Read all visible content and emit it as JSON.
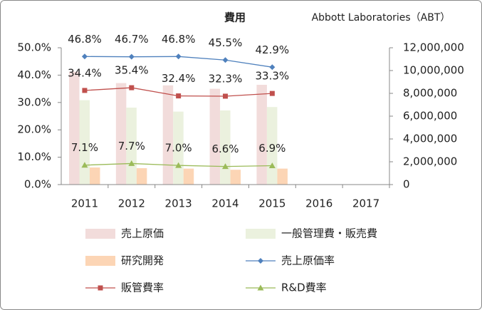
{
  "chart_data": {
    "type": "bar",
    "title": "費用",
    "subtitle": "Abbott Laboratories（ABT）",
    "categories": [
      "2011",
      "2012",
      "2013",
      "2014",
      "2015",
      "2016",
      "2017"
    ],
    "ylim": [
      0,
      50
    ],
    "yticks": [
      {
        "value": 0,
        "label": "0.0%"
      },
      {
        "value": 10,
        "label": "10.0%"
      },
      {
        "value": 20,
        "label": "20.0%"
      },
      {
        "value": 30,
        "label": "30.0%"
      },
      {
        "value": 40,
        "label": "40.0%"
      },
      {
        "value": 50,
        "label": "50.0%"
      }
    ],
    "y2lim": [
      0,
      12000000
    ],
    "y2ticks": [
      0,
      {
        "value": 2000000,
        "label": "2,000,000"
      },
      {
        "value": 4000000,
        "label": "4,000,000"
      },
      {
        "value": 6000000,
        "label": "6,000,000"
      },
      {
        "value": 8000000,
        "label": "8,000,000"
      },
      {
        "value": 10000000,
        "label": "10,000,000"
      },
      {
        "value": 12000000,
        "label": "12,000,000"
      }
    ],
    "grid": false,
    "legend": "bottom",
    "series": [
      {
        "name": "売上原価",
        "type": "bar",
        "axis": "y2",
        "color": "#f2dcdb",
        "values": [
          9900000,
          8900000,
          8700000,
          8400000,
          8750000,
          null,
          null
        ]
      },
      {
        "name": "一般管理費・販売費",
        "type": "bar",
        "axis": "y2",
        "color": "#ebf1de",
        "values": [
          7400000,
          6750000,
          6400000,
          6500000,
          6800000,
          null,
          null
        ]
      },
      {
        "name": "研究開発",
        "type": "bar",
        "axis": "y2",
        "color": "#fcd5b5",
        "values": [
          1500000,
          1440000,
          1400000,
          1300000,
          1400000,
          null,
          null
        ]
      },
      {
        "name": "売上原価率",
        "type": "line",
        "marker": "diamond",
        "color": "#4f81bd",
        "values": [
          46.8,
          46.7,
          46.8,
          45.5,
          42.9,
          null,
          null
        ],
        "value_labels": [
          "46.8%",
          "46.7%",
          "46.8%",
          "45.5%",
          "42.9%",
          null,
          null
        ]
      },
      {
        "name": "販管費率",
        "type": "line",
        "marker": "square",
        "color": "#c0504d",
        "values": [
          34.4,
          35.4,
          32.4,
          32.3,
          33.3,
          null,
          null
        ],
        "value_labels": [
          "34.4%",
          "35.4%",
          "32.4%",
          "32.3%",
          "33.3%",
          null,
          null
        ]
      },
      {
        "name": "R&D費率",
        "type": "line",
        "marker": "triangle",
        "color": "#9bbb59",
        "values": [
          7.1,
          7.7,
          7.0,
          6.6,
          6.9,
          null,
          null
        ],
        "value_labels": [
          "7.1%",
          "7.7%",
          "7.0%",
          "6.6%",
          "6.9%",
          null,
          null
        ]
      }
    ]
  }
}
